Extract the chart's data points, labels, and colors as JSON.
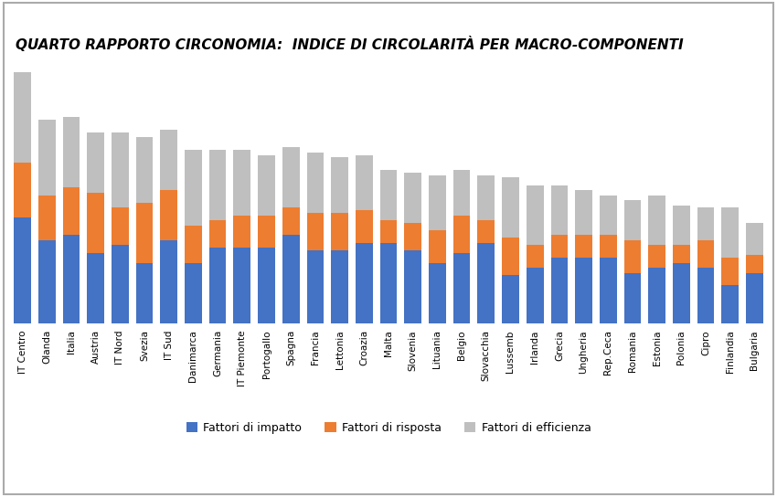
{
  "title": "QUARTO RAPPORTO CIRCONOMIA:  INDICE DI CIRCOLARITÀ PER MACRO-COMPONENTI",
  "categories": [
    "IT Centro",
    "Olanda",
    "Italia",
    "Austria",
    "IT Nord",
    "Svezia",
    "IT Sud",
    "Danimarca",
    "Germania",
    "IT Piemonte",
    "Portogallo",
    "Spagna",
    "Francia",
    "Lettonia",
    "Croazia",
    "Malta",
    "Slovenia",
    "Lituania",
    "Belgio",
    "Slovacchia",
    "Lussemb",
    "Irlanda",
    "Grecia",
    "Ungheria",
    "Rep.Ceca",
    "Romania",
    "Estonia",
    "Polonia",
    "Cipro",
    "Finlandia",
    "Bulgaria"
  ],
  "impatto": [
    42,
    33,
    35,
    28,
    31,
    24,
    33,
    24,
    30,
    30,
    30,
    35,
    29,
    29,
    32,
    32,
    29,
    24,
    28,
    32,
    19,
    22,
    26,
    26,
    26,
    20,
    22,
    24,
    22,
    15,
    20
  ],
  "risposta": [
    22,
    18,
    19,
    24,
    15,
    24,
    20,
    15,
    11,
    13,
    13,
    11,
    15,
    15,
    13,
    9,
    11,
    13,
    15,
    9,
    15,
    9,
    9,
    9,
    9,
    13,
    9,
    7,
    11,
    11,
    7
  ],
  "efficienza": [
    36,
    30,
    28,
    24,
    30,
    26,
    24,
    30,
    28,
    26,
    24,
    24,
    24,
    22,
    22,
    20,
    20,
    22,
    18,
    18,
    24,
    24,
    20,
    18,
    16,
    16,
    20,
    16,
    13,
    20,
    13
  ],
  "color_impatto": "#4472C4",
  "color_risposta": "#ED7D31",
  "color_efficienza": "#BFBFBF",
  "legend_labels": [
    "Fattori di impatto",
    "Fattori di risposta",
    "Fattori di efficienza"
  ],
  "background_color": "#FFFFFF",
  "grid_color": "#D9D9D9",
  "border_color": "#AAAAAA",
  "ylim_max": 105,
  "bar_width": 0.7,
  "title_fontsize": 11,
  "tick_fontsize": 7.5,
  "legend_fontsize": 9
}
